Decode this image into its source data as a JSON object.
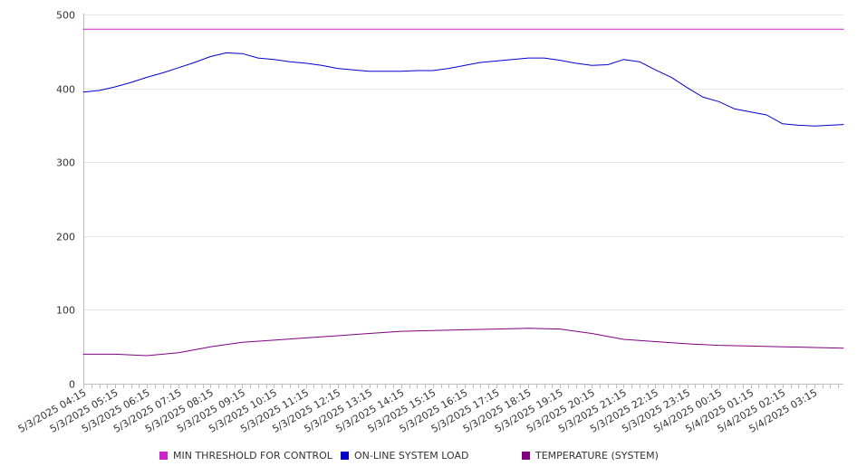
{
  "chart_data": {
    "type": "line",
    "title": "",
    "xlabel": "",
    "ylabel": "",
    "ylim": [
      0,
      500
    ],
    "yticks": [
      0,
      100,
      200,
      300,
      400,
      500
    ],
    "grid": true,
    "legend_position": "bottom",
    "x_tick_labels": [
      "5/3/2025 04:15",
      "5/3/2025 05:15",
      "5/3/2025 06:15",
      "5/3/2025 07:15",
      "5/3/2025 08:15",
      "5/3/2025 09:15",
      "5/3/2025 10:15",
      "5/3/2025 11:15",
      "5/3/2025 12:15",
      "5/3/2025 13:15",
      "5/3/2025 14:15",
      "5/3/2025 15:15",
      "5/3/2025 16:15",
      "5/3/2025 17:15",
      "5/3/2025 18:15",
      "5/3/2025 19:15",
      "5/3/2025 20:15",
      "5/3/2025 21:15",
      "5/3/2025 22:15",
      "5/3/2025 23:15",
      "5/4/2025 00:15",
      "5/4/2025 01:15",
      "5/4/2025 02:15",
      "5/4/2025 03:15"
    ],
    "series": [
      {
        "name": "MIN THRESHOLD FOR CONTROL",
        "color": "#cc22cc",
        "x": [
          "5/3/2025 04:15",
          "5/4/2025 04:15"
        ],
        "values": [
          480,
          480
        ]
      },
      {
        "name": "ON-LINE SYSTEM LOAD",
        "color": "#0000cc",
        "x": [
          "5/3/2025 04:15",
          "5/3/2025 04:45",
          "5/3/2025 05:15",
          "5/3/2025 05:45",
          "5/3/2025 06:15",
          "5/3/2025 06:45",
          "5/3/2025 07:15",
          "5/3/2025 07:45",
          "5/3/2025 08:15",
          "5/3/2025 08:45",
          "5/3/2025 09:15",
          "5/3/2025 09:45",
          "5/3/2025 10:15",
          "5/3/2025 10:45",
          "5/3/2025 11:15",
          "5/3/2025 11:45",
          "5/3/2025 12:15",
          "5/3/2025 12:45",
          "5/3/2025 13:15",
          "5/3/2025 13:45",
          "5/3/2025 14:15",
          "5/3/2025 14:45",
          "5/3/2025 15:15",
          "5/3/2025 15:45",
          "5/3/2025 16:15",
          "5/3/2025 16:45",
          "5/3/2025 17:15",
          "5/3/2025 17:45",
          "5/3/2025 18:15",
          "5/3/2025 18:45",
          "5/3/2025 19:15",
          "5/3/2025 19:45",
          "5/3/2025 20:15",
          "5/3/2025 20:45",
          "5/3/2025 21:15",
          "5/3/2025 21:45",
          "5/3/2025 22:15",
          "5/3/2025 22:45",
          "5/3/2025 23:15",
          "5/3/2025 23:45",
          "5/4/2025 00:15",
          "5/4/2025 00:45",
          "5/4/2025 01:15",
          "5/4/2025 01:45",
          "5/4/2025 02:15",
          "5/4/2025 02:45",
          "5/4/2025 03:15",
          "5/4/2025 03:45",
          "5/4/2025 04:10"
        ],
        "values": [
          395,
          397,
          402,
          408,
          415,
          421,
          428,
          435,
          443,
          448,
          447,
          441,
          439,
          436,
          434,
          431,
          427,
          425,
          423,
          423,
          423,
          424,
          424,
          427,
          431,
          435,
          437,
          439,
          441,
          441,
          438,
          434,
          431,
          432,
          439,
          436,
          425,
          415,
          401,
          388,
          382,
          372,
          368,
          364,
          352,
          350,
          349,
          350,
          351
        ]
      },
      {
        "name": "TEMPERATURE (SYSTEM)",
        "color": "#800080",
        "x": [
          "5/3/2025 04:15",
          "5/3/2025 05:15",
          "5/3/2025 06:15",
          "5/3/2025 07:15",
          "5/3/2025 08:15",
          "5/3/2025 09:15",
          "5/3/2025 10:15",
          "5/3/2025 11:15",
          "5/3/2025 12:15",
          "5/3/2025 13:15",
          "5/3/2025 14:15",
          "5/3/2025 15:15",
          "5/3/2025 16:15",
          "5/3/2025 17:15",
          "5/3/2025 18:15",
          "5/3/2025 19:15",
          "5/3/2025 20:15",
          "5/3/2025 21:15",
          "5/3/2025 22:15",
          "5/3/2025 23:15",
          "5/4/2025 00:15",
          "5/4/2025 01:15",
          "5/4/2025 02:15",
          "5/4/2025 03:15",
          "5/4/2025 04:10"
        ],
        "values": [
          40,
          40,
          38,
          42,
          50,
          56,
          59,
          62,
          65,
          68,
          71,
          72,
          73,
          74,
          75,
          74,
          68,
          60,
          57,
          54,
          52,
          51,
          50,
          49,
          48
        ]
      }
    ]
  }
}
